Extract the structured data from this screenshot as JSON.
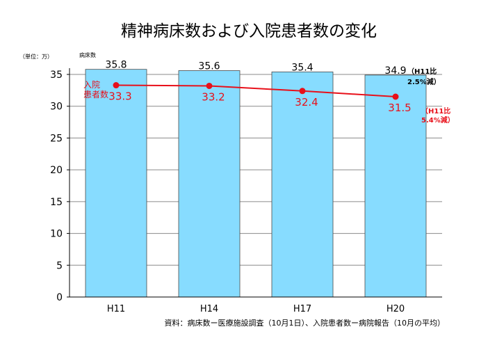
{
  "chart_data": {
    "type": "bar",
    "title": "精神病床数および入院患者数の変化",
    "unit_label": "（単位：万）",
    "categories": [
      "H11",
      "H14",
      "H17",
      "H20"
    ],
    "ylim": [
      0,
      35
    ],
    "yticks": [
      0,
      5,
      10,
      15,
      20,
      25,
      30,
      35
    ],
    "grid": true,
    "series": [
      {
        "name": "病床数",
        "type": "bar",
        "values": [
          35.8,
          35.6,
          35.4,
          34.9
        ],
        "color": "#87dcff"
      },
      {
        "name": "入院\n患者数",
        "type": "line",
        "values": [
          33.3,
          33.2,
          32.4,
          31.5
        ],
        "color": "#e8101a"
      }
    ],
    "annotations": [
      {
        "text": "（H11比\n2.5%減）",
        "color": "#000000"
      },
      {
        "text": "（H11比\n5.4%減）",
        "color": "#e8101a"
      }
    ],
    "source": "資料：病床数ー医療施設調査（10月1日）、入院患者数ー病院報告（10月の平均）"
  }
}
